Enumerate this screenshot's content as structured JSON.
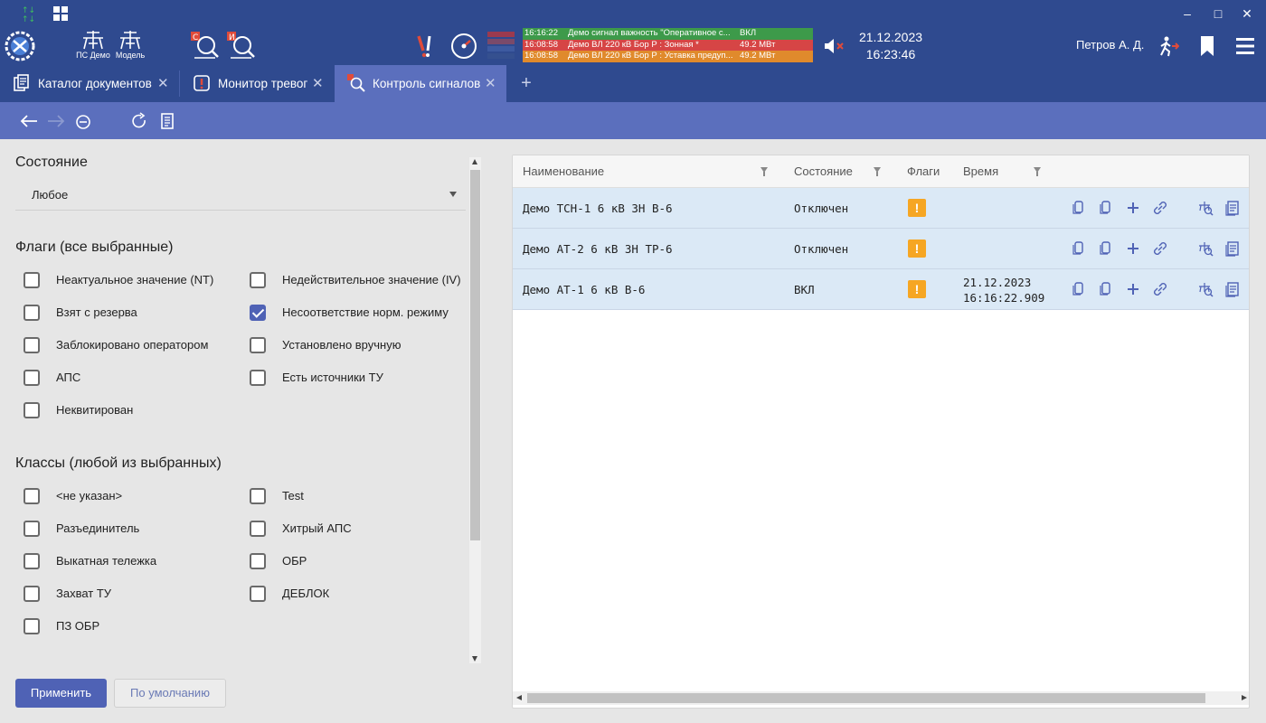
{
  "toolbar": {
    "ps_demo_label": "ПС Демо",
    "model_label": "Модель",
    "events": [
      {
        "time": "16:16:22",
        "text": "Демо сигнал важность \"Оперативное с...",
        "value": "ВКЛ",
        "color": "#3d9a4a"
      },
      {
        "time": "16:08:58",
        "text": "Демо ВЛ 220 кВ Бор Р : Зонная *",
        "value": "49.2 МВт",
        "color": "#d64545"
      },
      {
        "time": "16:08:58",
        "text": "Демо ВЛ 220 кВ Бор Р : Уставка предуп...",
        "value": "49.2 МВт",
        "color": "#e08a2c"
      }
    ],
    "date": "21.12.2023",
    "time": "16:23:46",
    "user": "Петров А. Д."
  },
  "tabs": [
    {
      "label": "Каталог документов",
      "active": false
    },
    {
      "label": "Монитор тревог",
      "active": false
    },
    {
      "label": "Контроль сигналов",
      "active": true
    }
  ],
  "filters": {
    "state_title": "Состояние",
    "state_value": "Любое",
    "flags_title": "Флаги (все выбранные)",
    "flags": [
      {
        "label": "Неактуальное значение (NT)",
        "checked": false
      },
      {
        "label": "Недействительное значение (IV)",
        "checked": false
      },
      {
        "label": "Взят с резерва",
        "checked": false
      },
      {
        "label": "Несоответствие норм. режиму",
        "checked": true
      },
      {
        "label": "Заблокировано оператором",
        "checked": false
      },
      {
        "label": "Установлено вручную",
        "checked": false
      },
      {
        "label": "АПС",
        "checked": false
      },
      {
        "label": "Есть источники ТУ",
        "checked": false
      },
      {
        "label": "Неквитирован",
        "checked": false
      }
    ],
    "classes_title": "Классы (любой из выбранных)",
    "classes": [
      {
        "label": "<не указан>",
        "checked": false
      },
      {
        "label": "Test",
        "checked": false
      },
      {
        "label": "Разъединитель",
        "checked": false
      },
      {
        "label": "Хитрый АПС",
        "checked": false
      },
      {
        "label": "Выкатная тележка",
        "checked": false
      },
      {
        "label": "ОБР",
        "checked": false
      },
      {
        "label": "Захват ТУ",
        "checked": false
      },
      {
        "label": "ДЕБЛОК",
        "checked": false
      },
      {
        "label": "ПЗ ОБР",
        "checked": false
      }
    ],
    "apply_label": "Применить",
    "default_label": "По умолчанию"
  },
  "table": {
    "columns": {
      "name": "Наименование",
      "state": "Состояние",
      "flags": "Флаги",
      "time": "Время"
    },
    "rows": [
      {
        "name": "Демо ТСН-1 6 кВ ЗН В-6",
        "state": "Отключен",
        "flag": "!",
        "date": "",
        "time": ""
      },
      {
        "name": "Демо АТ-2 6 кВ ЗН ТР-6",
        "state": "Отключен",
        "flag": "!",
        "date": "",
        "time": ""
      },
      {
        "name": "Демо АТ-1 6 кВ В-6",
        "state": "ВКЛ",
        "flag": "!",
        "date": "21.12.2023",
        "time": "16:16:22.909"
      }
    ]
  }
}
